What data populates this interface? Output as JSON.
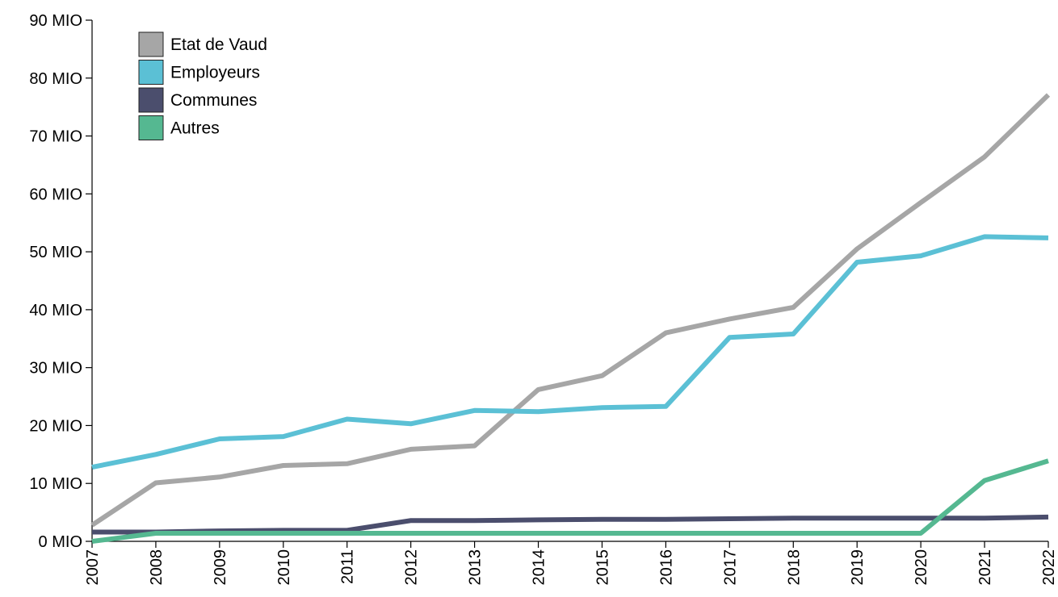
{
  "chart_data": {
    "type": "line",
    "title": "",
    "xlabel": "",
    "ylabel": "",
    "x": [
      "2007",
      "2008",
      "2009",
      "2010",
      "2011",
      "2012",
      "2013",
      "2014",
      "2015",
      "2016",
      "2017",
      "2018",
      "2019",
      "2020",
      "2021",
      "2022"
    ],
    "ylim": [
      0,
      90
    ],
    "y_ticks": [
      {
        "value": 0,
        "label": "0 MIO"
      },
      {
        "value": 10,
        "label": "10 MIO"
      },
      {
        "value": 20,
        "label": "20 MIO"
      },
      {
        "value": 30,
        "label": "30 MIO"
      },
      {
        "value": 40,
        "label": "40 MIO"
      },
      {
        "value": 50,
        "label": "50 MIO"
      },
      {
        "value": 60,
        "label": "60 MIO"
      },
      {
        "value": 70,
        "label": "70 MIO"
      },
      {
        "value": 80,
        "label": "80 MIO"
      },
      {
        "value": 90,
        "label": "90 MIO"
      }
    ],
    "grid": false,
    "legend_position": "top-left",
    "series": [
      {
        "name": "Etat de Vaud",
        "color": "#a6a6a6",
        "values": [
          2.8,
          10.1,
          11.1,
          13.1,
          13.4,
          15.9,
          16.5,
          26.2,
          28.6,
          36.0,
          38.4,
          40.4,
          50.5,
          58.5,
          66.4,
          77.1
        ]
      },
      {
        "name": "Employeurs",
        "color": "#5bc0d5",
        "values": [
          12.8,
          15.0,
          17.7,
          18.1,
          21.1,
          20.3,
          22.6,
          22.4,
          23.1,
          23.3,
          35.2,
          35.8,
          48.2,
          49.3,
          52.6,
          52.4
        ]
      },
      {
        "name": "Communes",
        "color": "#4b4e6d",
        "values": [
          1.6,
          1.6,
          1.8,
          1.9,
          1.9,
          3.6,
          3.6,
          3.7,
          3.8,
          3.8,
          3.9,
          4.0,
          4.0,
          4.0,
          4.0,
          4.2
        ]
      },
      {
        "name": "Autres",
        "color": "#55b891",
        "values": [
          0.0,
          1.4,
          1.4,
          1.4,
          1.4,
          1.4,
          1.4,
          1.4,
          1.4,
          1.4,
          1.4,
          1.4,
          1.4,
          1.4,
          10.5,
          13.9
        ]
      }
    ]
  }
}
